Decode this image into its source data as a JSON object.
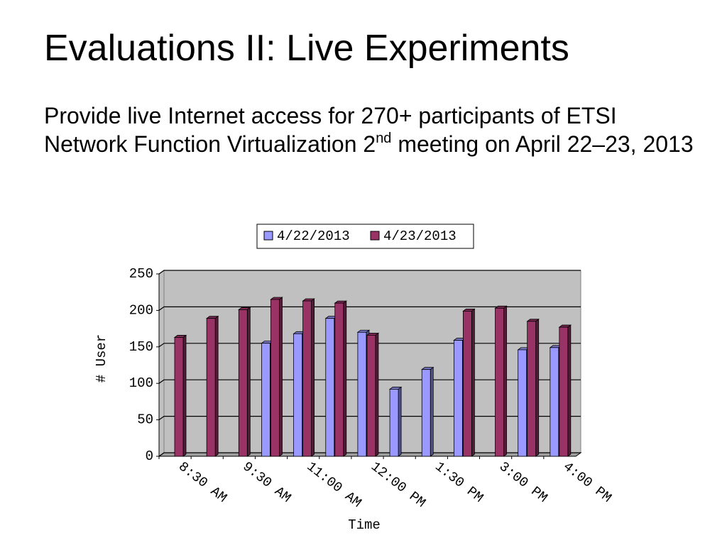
{
  "slide": {
    "title": "Evaluations II: Live Experiments",
    "body": [
      "Provide live Internet access for 270+ participants of ETSI Network Function Virtualization 2",
      "nd",
      " meeting on April 22–23, 2013"
    ]
  },
  "chart_data": {
    "type": "bar",
    "categories": [
      "8:30 AM",
      null,
      "9:30 AM",
      null,
      "11:00 AM",
      null,
      "12:00 PM",
      null,
      "1:30 PM",
      null,
      "3:00 PM",
      null,
      "4:00 PM"
    ],
    "series": [
      {
        "name": "4/22/2013",
        "color": "#9999ff",
        "values": [
          null,
          null,
          null,
          155,
          168,
          189,
          170,
          92,
          119,
          159,
          null,
          146,
          149
        ]
      },
      {
        "name": "4/23/2013",
        "color": "#993366",
        "values": [
          163,
          189,
          201,
          215,
          213,
          210,
          166,
          null,
          null,
          199,
          203,
          185,
          177
        ]
      }
    ],
    "ylabel": "# User",
    "xlabel": "Time",
    "ylim": [
      0,
      250
    ],
    "yticks": [
      0,
      50,
      100,
      150,
      200,
      250
    ],
    "grid": true,
    "legend": "top"
  }
}
